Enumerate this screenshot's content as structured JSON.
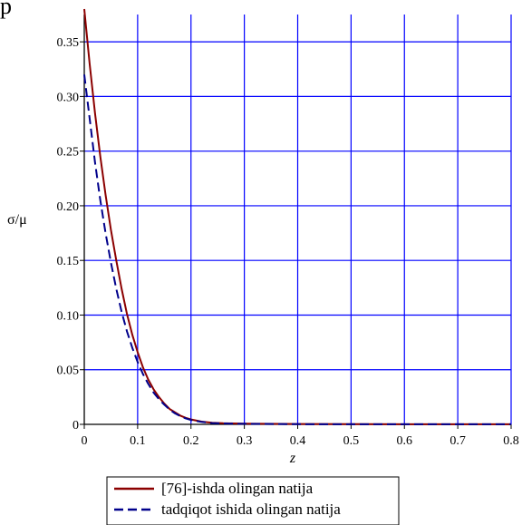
{
  "page": {
    "top_fragment": "p"
  },
  "chart_data": {
    "type": "line",
    "title": "",
    "xlabel": "z",
    "ylabel": "σ/μ",
    "xlim": [
      0,
      0.8
    ],
    "ylim": [
      0,
      0.375
    ],
    "xticks": [
      0,
      0.1,
      0.2,
      0.3,
      0.4,
      0.5,
      0.6,
      0.7,
      0.8
    ],
    "xtick_labels": [
      "0",
      "0.1",
      "0.2",
      "0.3",
      "0.4",
      "0.5",
      "0.6",
      "0.7",
      "0.8"
    ],
    "yticks": [
      0,
      0.05,
      0.1,
      0.15,
      0.2,
      0.25,
      0.3,
      0.35
    ],
    "ytick_labels": [
      "0",
      "0.05",
      "0.10",
      "0.15",
      "0.20",
      "0.25",
      "0.30",
      "0.35"
    ],
    "grid": true,
    "grid_color": "#0000ff",
    "legend_position": "bottom-center",
    "series": [
      {
        "name": "[76]-ishda olingan natija",
        "color": "#8b0000",
        "style": "solid",
        "x": [
          0,
          0.01,
          0.02,
          0.03,
          0.04,
          0.05,
          0.06,
          0.07,
          0.08,
          0.09,
          0.1,
          0.11,
          0.12,
          0.13,
          0.14,
          0.15,
          0.16,
          0.17,
          0.18,
          0.19,
          0.2,
          0.22,
          0.24,
          0.26,
          0.28,
          0.3,
          0.4,
          0.5,
          0.6,
          0.7,
          0.8
        ],
        "y": [
          0.38,
          0.33,
          0.285,
          0.245,
          0.21,
          0.178,
          0.15,
          0.124,
          0.101,
          0.082,
          0.066,
          0.052,
          0.041,
          0.032,
          0.025,
          0.019,
          0.014,
          0.011,
          0.008,
          0.006,
          0.0045,
          0.0025,
          0.0015,
          0.001,
          0.0008,
          0.0006,
          0.0003,
          0.0002,
          0.0001,
          0.0001,
          0.0001
        ]
      },
      {
        "name": "tadqiqot ishida olingan natija",
        "color": "#00008b",
        "style": "dashed",
        "x": [
          0,
          0.01,
          0.02,
          0.03,
          0.04,
          0.05,
          0.06,
          0.07,
          0.08,
          0.09,
          0.1,
          0.11,
          0.12,
          0.13,
          0.14,
          0.15,
          0.16,
          0.17,
          0.18,
          0.19,
          0.2,
          0.22,
          0.24,
          0.26,
          0.28,
          0.3,
          0.4,
          0.5,
          0.6,
          0.7,
          0.8
        ],
        "y": [
          0.32,
          0.28,
          0.24,
          0.205,
          0.175,
          0.148,
          0.124,
          0.103,
          0.085,
          0.07,
          0.057,
          0.046,
          0.037,
          0.029,
          0.023,
          0.018,
          0.0135,
          0.01,
          0.0075,
          0.0055,
          0.004,
          0.0022,
          0.0012,
          0.0008,
          0.0006,
          0.0005,
          0.0002,
          0.0001,
          0.0001,
          0.0001,
          0.0001
        ]
      }
    ]
  }
}
